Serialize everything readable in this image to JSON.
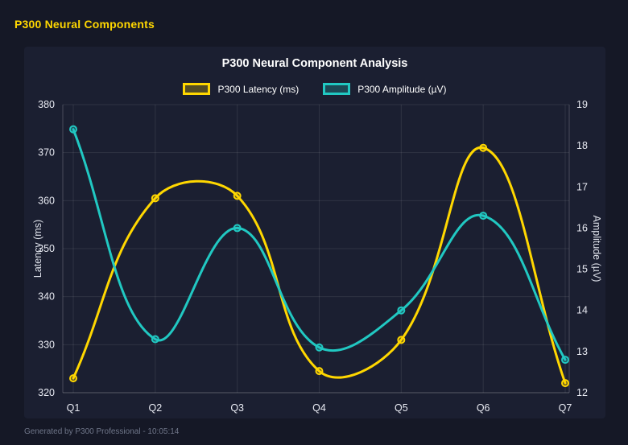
{
  "page": {
    "header_title": "P300 Neural Components",
    "footer": "Generated by P300 Professional - 10:05:14"
  },
  "chart_data": {
    "type": "line",
    "title": "P300 Neural Component Analysis",
    "categories": [
      "Q1",
      "Q2",
      "Q3",
      "Q4",
      "Q5",
      "Q6",
      "Q7"
    ],
    "series": [
      {
        "name": "P300 Latency (ms)",
        "axis": "left",
        "color": "#FFD700",
        "values": [
          323,
          360.5,
          361,
          324.5,
          331,
          371,
          322
        ]
      },
      {
        "name": "P300 Amplitude (µV)",
        "axis": "right",
        "color": "#21C8C2",
        "values": [
          18.4,
          13.3,
          16.0,
          13.1,
          14.0,
          16.3,
          12.8
        ]
      }
    ],
    "left_axis": {
      "label": "Latency (ms)",
      "min": 320,
      "max": 380,
      "ticks": [
        320,
        330,
        340,
        350,
        360,
        370,
        380
      ]
    },
    "right_axis": {
      "label": "Amplitude (µV)",
      "min": 12,
      "max": 19,
      "ticks": [
        12,
        13,
        14,
        15,
        16,
        17,
        18,
        19
      ]
    },
    "grid": true,
    "legend_position": "top",
    "smoothing_tension": 0.4
  },
  "colors": {
    "background": "#151826",
    "panel": "#1b1f31",
    "header_accent": "#FFD700",
    "tick_text": "#e8eaf2",
    "axis_title_text": "#dde0e9",
    "gridline": "rgba(255,255,255,0.09)",
    "axis_line": "rgba(255,255,255,0.20)",
    "footer_text": "#6f7689"
  }
}
